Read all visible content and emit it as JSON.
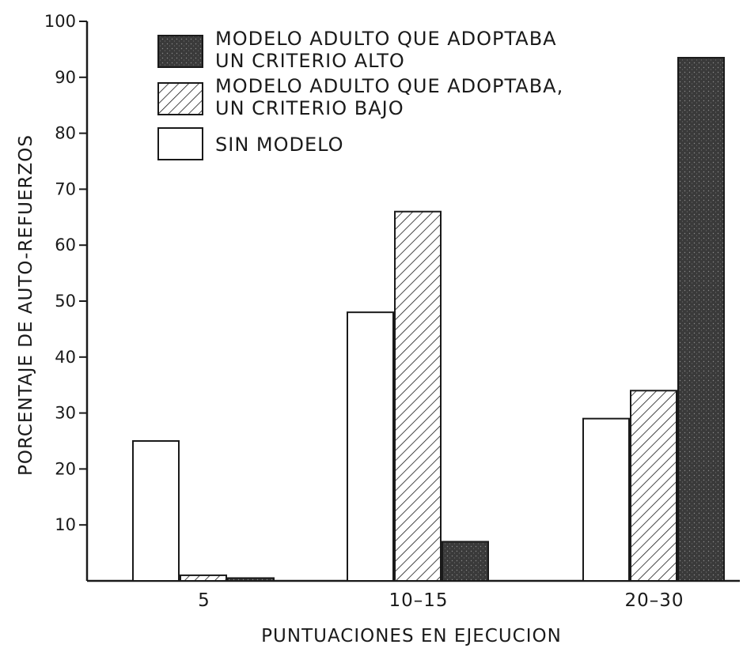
{
  "chart_data": {
    "type": "bar",
    "title": "",
    "xlabel": "PUNTUACIONES EN EJECUCION",
    "ylabel": "PORCENTAJE DE AUTO-REFUERZOS",
    "ylim": [
      0,
      100
    ],
    "yticks": [
      10,
      20,
      30,
      40,
      50,
      60,
      70,
      80,
      90,
      100
    ],
    "ytick_labels": [
      "10",
      "20",
      "30",
      "40",
      "50",
      "60",
      "70",
      "80",
      "90",
      "100"
    ],
    "categories": [
      "5",
      "10–15",
      "20–30"
    ],
    "series": [
      {
        "name": "SIN MODELO",
        "pattern": "open",
        "values": [
          25,
          48,
          29
        ]
      },
      {
        "name": "MODELO ADULTO QUE ADOPTABA, UN CRITERIO BAJO",
        "pattern": "hatched",
        "values": [
          1,
          66,
          34
        ]
      },
      {
        "name": "MODELO ADULTO QUE ADOPTABA UN CRITERIO ALTO",
        "pattern": "dark",
        "values": [
          0.5,
          7,
          93.5
        ]
      }
    ],
    "legend": {
      "placement": "top-left",
      "entries": [
        {
          "pattern": "dark",
          "lines": [
            "MODELO ADULTO QUE ADOPTABA",
            "UN CRITERIO ALTO"
          ]
        },
        {
          "pattern": "hatched",
          "lines": [
            "MODELO ADULTO QUE ADOPTABA,",
            "UN CRITERIO BAJO"
          ]
        },
        {
          "pattern": "open",
          "lines": [
            "SIN MODELO"
          ]
        }
      ]
    },
    "grid": false,
    "colors": {
      "ink": "#1a1a1a",
      "dark_fill": "#3a3a3a",
      "open_fill": "#ffffff"
    }
  }
}
